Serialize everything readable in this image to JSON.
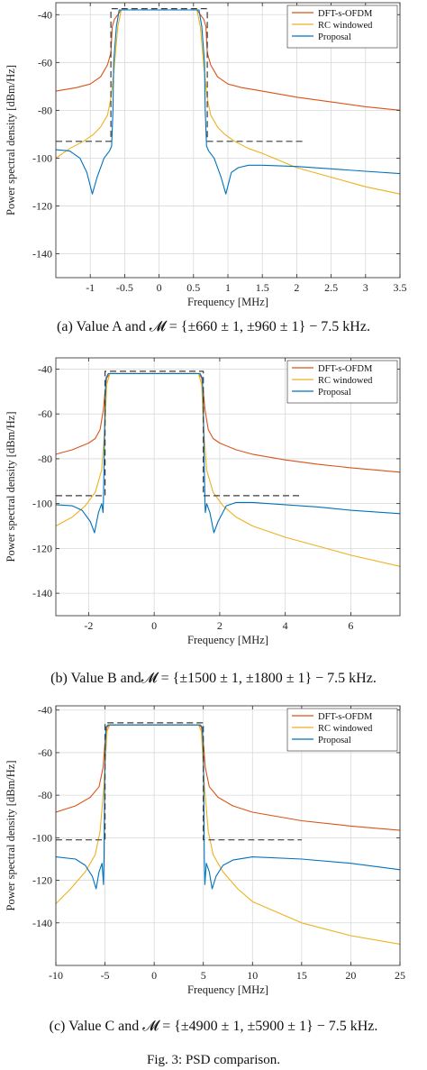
{
  "figure_caption": "Fig. 3: PSD comparison.",
  "colors": {
    "dft": "#d95319",
    "rc": "#edb120",
    "proposal": "#0072bd",
    "mask": "#3c3c3c",
    "grid": "#d9d9d9",
    "axis": "#262626"
  },
  "chart_data": [
    {
      "type": "line",
      "caption": "(a) Value A and 𝓜 = {±660 ± 1, ±960 ± 1} − 7.5 kHz.",
      "xlabel": "Frequency [MHz]",
      "ylabel": "Power spectral density [dBm/Hz]",
      "xlim": [
        -1.5,
        3.5
      ],
      "ylim": [
        -150,
        -35
      ],
      "xticks": [
        -1,
        -0.5,
        0,
        0.5,
        1,
        1.5,
        2,
        2.5,
        3,
        3.5
      ],
      "xtick_labels": [
        "-1",
        "-0.5",
        "0",
        "0.5",
        "1",
        "1.5",
        "2",
        "2.5",
        "3",
        "3.5"
      ],
      "yticks": [
        -140,
        -120,
        -100,
        -80,
        -60,
        -40
      ],
      "ytick_labels": [
        "-140",
        "-120",
        "-100",
        "-80",
        "-60",
        "-40"
      ],
      "grid": true,
      "legend_position": "top-right",
      "series": [
        {
          "name": "DFT-s-OFDM",
          "color_key": "dft",
          "x": [
            -1.5,
            -1.2,
            -1.0,
            -0.85,
            -0.75,
            -0.7,
            -0.68,
            -0.65,
            -0.6,
            -0.55,
            0.55,
            0.6,
            0.65,
            0.68,
            0.7,
            0.75,
            0.85,
            1.0,
            1.2,
            1.5,
            2.0,
            2.5,
            3.0,
            3.5
          ],
          "y": [
            -72,
            -70.5,
            -69,
            -66,
            -61,
            -56,
            -45,
            -42,
            -40,
            -38,
            -38,
            -40,
            -42,
            -45,
            -56,
            -61,
            -66,
            -69,
            -70.5,
            -72,
            -74.5,
            -76.5,
            -78.5,
            -80
          ]
        },
        {
          "name": "RC windowed",
          "color_key": "rc",
          "x": [
            -1.5,
            -1.3,
            -1.1,
            -0.95,
            -0.85,
            -0.75,
            -0.7,
            -0.65,
            -0.6,
            -0.55,
            0.55,
            0.6,
            0.65,
            0.7,
            0.75,
            0.85,
            0.95,
            1.1,
            1.3,
            1.5,
            2.0,
            2.5,
            3.0,
            3.5
          ],
          "y": [
            -100,
            -96,
            -93,
            -90,
            -87,
            -82,
            -75,
            -62,
            -45,
            -38,
            -38,
            -45,
            -62,
            -75,
            -82,
            -87,
            -90,
            -93,
            -96,
            -98,
            -104,
            -108,
            -112,
            -115
          ]
        },
        {
          "name": "Proposal",
          "color_key": "proposal",
          "x": [
            -1.5,
            -1.3,
            -1.15,
            -1.05,
            -0.97,
            -0.9,
            -0.8,
            -0.72,
            -0.69,
            -0.67,
            -0.66,
            -0.62,
            -0.58,
            -0.55,
            0.55,
            0.58,
            0.62,
            0.66,
            0.67,
            0.69,
            0.72,
            0.8,
            0.9,
            0.97,
            1.05,
            1.15,
            1.3,
            1.5,
            2.0,
            2.5,
            3.0,
            3.5
          ],
          "y": [
            -96.5,
            -97,
            -100,
            -106,
            -115,
            -108,
            -100,
            -97,
            -95,
            -80,
            -60,
            -45,
            -38,
            -38,
            -38,
            -38,
            -45,
            -60,
            -80,
            -95,
            -97,
            -100,
            -108,
            -115,
            -106,
            -104,
            -103,
            -103,
            -103.5,
            -104.5,
            -105.5,
            -106.5
          ]
        },
        {
          "name": "",
          "color_key": "mask",
          "dashed": true,
          "x": [
            -1.5,
            -0.7,
            -0.7,
            -0.7,
            0.7,
            0.7,
            0.7,
            2.1
          ],
          "y": [
            -93,
            -93,
            -93,
            -37.5,
            -37.5,
            -93,
            -93,
            -93
          ]
        }
      ]
    },
    {
      "type": "line",
      "caption": "(b) Value B and𝓜 = {±1500 ± 1, ±1800 ± 1} − 7.5 kHz.",
      "xlabel": "Frequency [MHz]",
      "ylabel": "Power spectral density [dBm/Hz]",
      "xlim": [
        -3,
        7.5
      ],
      "ylim": [
        -150,
        -35
      ],
      "xticks": [
        -2,
        0,
        2,
        4,
        6
      ],
      "xtick_labels": [
        "-2",
        "0",
        "2",
        "4",
        "6"
      ],
      "yticks": [
        -140,
        -120,
        -100,
        -80,
        -60,
        -40
      ],
      "ytick_labels": [
        "-140",
        "-120",
        "-100",
        "-80",
        "-60",
        "-40"
      ],
      "grid": true,
      "legend_position": "top-right",
      "series": [
        {
          "name": "DFT-s-OFDM",
          "color_key": "dft",
          "x": [
            -3,
            -2.5,
            -2.0,
            -1.8,
            -1.65,
            -1.55,
            -1.5,
            -1.45,
            -1.35,
            1.35,
            1.45,
            1.5,
            1.55,
            1.65,
            1.8,
            2.0,
            2.5,
            3,
            4,
            5,
            6,
            7.5
          ],
          "y": [
            -78,
            -76,
            -73,
            -71,
            -67,
            -58,
            -50,
            -44,
            -42,
            -42,
            -44,
            -50,
            -58,
            -67,
            -71,
            -73,
            -76,
            -78,
            -80.5,
            -82.5,
            -84,
            -86
          ]
        },
        {
          "name": "RC windowed",
          "color_key": "rc",
          "x": [
            -3,
            -2.5,
            -2.1,
            -1.8,
            -1.6,
            -1.5,
            -1.45,
            -1.35,
            1.35,
            1.45,
            1.5,
            1.6,
            1.8,
            2.1,
            2.5,
            3,
            4,
            5,
            6,
            7.5
          ],
          "y": [
            -110,
            -106,
            -101,
            -95,
            -85,
            -65,
            -47,
            -42,
            -42,
            -47,
            -65,
            -85,
            -95,
            -101,
            -106,
            -110,
            -115,
            -119,
            -123,
            -128
          ]
        },
        {
          "name": "Proposal",
          "color_key": "proposal",
          "x": [
            -3,
            -2.5,
            -2.2,
            -1.95,
            -1.82,
            -1.7,
            -1.6,
            -1.56,
            -1.55,
            -1.52,
            -1.5,
            -1.47,
            -1.4,
            1.4,
            1.47,
            1.5,
            1.52,
            1.55,
            1.56,
            1.6,
            1.7,
            1.82,
            1.95,
            2.2,
            2.5,
            3,
            4,
            5,
            6,
            7.5
          ],
          "y": [
            -100.5,
            -101,
            -103,
            -108,
            -113,
            -104,
            -100,
            -104,
            -99,
            -75,
            -55,
            -44,
            -42,
            -42,
            -44,
            -55,
            -75,
            -99,
            -104,
            -100,
            -104,
            -113,
            -108,
            -101,
            -99.5,
            -99.5,
            -100.5,
            -101.5,
            -103,
            -104.5
          ]
        },
        {
          "name": "",
          "color_key": "mask",
          "dashed": true,
          "x": [
            -3,
            -1.5,
            -1.5,
            -1.5,
            1.5,
            1.5,
            1.5,
            4.5
          ],
          "y": [
            -96.5,
            -96.5,
            -96.5,
            -41,
            -41,
            -96.5,
            -96.5,
            -96.5
          ]
        }
      ]
    },
    {
      "type": "line",
      "caption": "(c) Value C and 𝓜 = {±4900 ± 1, ±5900 ± 1} − 7.5 kHz.",
      "xlabel": "Frequency [MHz]",
      "ylabel": "Power spectral density [dBm/Hz]",
      "xlim": [
        -10,
        25
      ],
      "ylim": [
        -160,
        -38
      ],
      "xticks": [
        -10,
        -5,
        0,
        5,
        10,
        15,
        20,
        25
      ],
      "xtick_labels": [
        "-10",
        "-5",
        "0",
        "5",
        "10",
        "15",
        "20",
        "25"
      ],
      "yticks": [
        -140,
        -120,
        -100,
        -80,
        -60,
        -40
      ],
      "ytick_labels": [
        "-140",
        "-120",
        "-100",
        "-80",
        "-60",
        "-40"
      ],
      "grid": true,
      "legend_position": "top-right",
      "series": [
        {
          "name": "DFT-s-OFDM",
          "color_key": "dft",
          "x": [
            -10,
            -8,
            -6.5,
            -5.6,
            -5.2,
            -5.0,
            -4.8,
            -4.5,
            4.5,
            4.8,
            5.0,
            5.2,
            5.6,
            6.5,
            8,
            10,
            15,
            20,
            25
          ],
          "y": [
            -88,
            -85,
            -81,
            -76,
            -67,
            -55,
            -48,
            -47,
            -47,
            -48,
            -55,
            -67,
            -76,
            -81,
            -85,
            -88,
            -92,
            -94.5,
            -96.5
          ]
        },
        {
          "name": "RC windowed",
          "color_key": "rc",
          "x": [
            -10,
            -8.5,
            -7,
            -6,
            -5.5,
            -5.1,
            -4.8,
            -4.5,
            4.5,
            4.8,
            5.1,
            5.5,
            6,
            7,
            8.5,
            10,
            15,
            20,
            25
          ],
          "y": [
            -131,
            -124,
            -116,
            -108,
            -97,
            -75,
            -50,
            -47,
            -47,
            -50,
            -75,
            -97,
            -108,
            -116,
            -124,
            -130,
            -140,
            -146,
            -150
          ]
        },
        {
          "name": "Proposal",
          "color_key": "proposal",
          "x": [
            -10,
            -8,
            -7,
            -6.3,
            -5.9,
            -5.6,
            -5.3,
            -5.15,
            -5.1,
            -5.05,
            -5.0,
            -4.9,
            -4.7,
            4.7,
            4.9,
            5.0,
            5.05,
            5.1,
            5.15,
            5.3,
            5.6,
            5.9,
            6.3,
            7,
            8,
            10,
            15,
            20,
            25
          ],
          "y": [
            -109,
            -110,
            -113,
            -118,
            -124,
            -116,
            -112,
            -122,
            -110,
            -80,
            -60,
            -48,
            -47,
            -47,
            -48,
            -60,
            -80,
            -110,
            -122,
            -112,
            -116,
            -124,
            -118,
            -113,
            -110.5,
            -109,
            -110,
            -112,
            -115
          ]
        },
        {
          "name": "",
          "color_key": "mask",
          "dashed": true,
          "x": [
            -10,
            -5,
            -5,
            -5,
            5,
            5,
            5,
            15
          ],
          "y": [
            -101,
            -101,
            -101,
            -46,
            -46,
            -101,
            -101,
            -101
          ]
        }
      ]
    }
  ]
}
